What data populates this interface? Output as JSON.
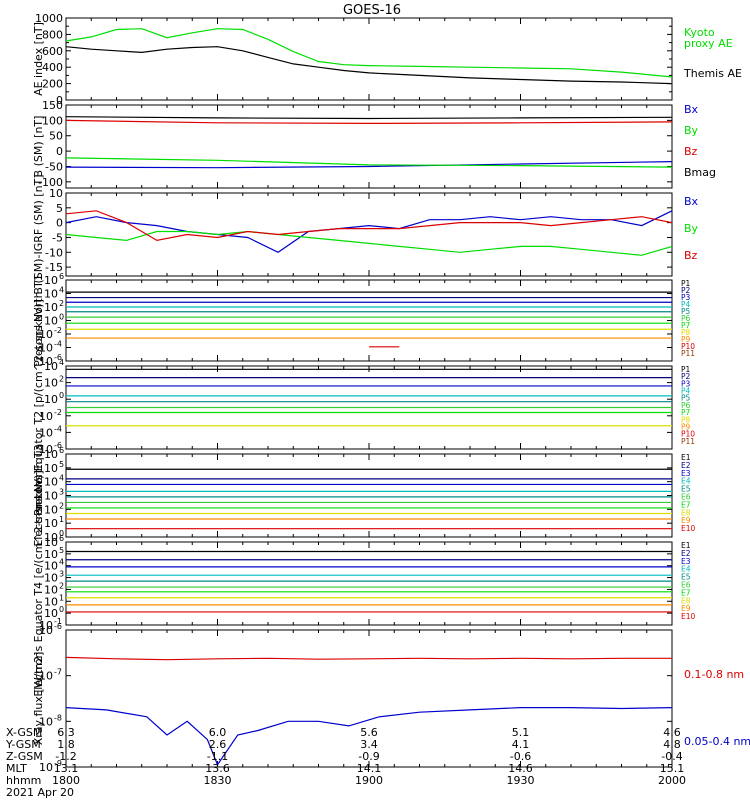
{
  "title": "GOES-16",
  "colors": {
    "black": "#000000",
    "green": "#00dd00",
    "blue": "#0000cc",
    "red": "#dd0000",
    "navy": "#000080",
    "cyan": "#00bbbb",
    "teal": "#008888",
    "lime": "#33cc33",
    "yellow": "#dddd00",
    "orange": "#ff8800",
    "brown": "#993300"
  },
  "chart_data": [
    {
      "type": "line",
      "ylabel": "AE index [nT]",
      "ylim": [
        0,
        1000
      ],
      "yticks": [
        "0",
        "200",
        "400",
        "600",
        "800",
        "1000"
      ],
      "yticks_minor": [
        "100",
        "300",
        "500",
        "700",
        "900"
      ],
      "series": [
        {
          "name": "Kyoto proxy AE",
          "color": "#00dd00",
          "x": [
            0,
            5,
            10,
            15,
            20,
            25,
            30,
            35,
            40,
            45,
            50,
            55,
            60,
            70,
            80,
            90,
            100,
            110,
            120
          ],
          "y": [
            720,
            770,
            860,
            870,
            760,
            820,
            870,
            860,
            740,
            590,
            470,
            430,
            420,
            410,
            400,
            390,
            380,
            340,
            280
          ]
        },
        {
          "name": "Themis AE",
          "color": "#000000",
          "x": [
            0,
            5,
            10,
            15,
            20,
            25,
            30,
            35,
            40,
            45,
            50,
            55,
            60,
            70,
            80,
            90,
            100,
            110,
            120
          ],
          "y": [
            650,
            620,
            600,
            580,
            620,
            640,
            650,
            600,
            520,
            440,
            400,
            360,
            330,
            300,
            270,
            250,
            230,
            220,
            200
          ]
        }
      ]
    },
    {
      "type": "line",
      "ylabel": "B (SM) [nT]",
      "ylim": [
        -120,
        150
      ],
      "yticks": [
        "-100",
        "-50",
        "0",
        "50",
        "100",
        "150"
      ],
      "series": [
        {
          "name": "Bx",
          "color": "#0000cc",
          "x": [
            0,
            30,
            60,
            90,
            120
          ],
          "y": [
            -52,
            -54,
            -50,
            -42,
            -34
          ]
        },
        {
          "name": "By",
          "color": "#00dd00",
          "x": [
            0,
            30,
            60,
            90,
            120
          ],
          "y": [
            -22,
            -30,
            -45,
            -47,
            -52
          ]
        },
        {
          "name": "Bz",
          "color": "#dd0000",
          "x": [
            0,
            30,
            60,
            90,
            120
          ],
          "y": [
            100,
            92,
            90,
            92,
            95
          ]
        },
        {
          "name": "Bmag",
          "color": "#000000",
          "x": [
            0,
            30,
            60,
            90,
            120
          ],
          "y": [
            112,
            108,
            106,
            108,
            110
          ]
        }
      ]
    },
    {
      "type": "line",
      "ylabel": "B (SM)-IGRF (SM) [nT]",
      "ylim": [
        -18,
        10
      ],
      "yticks": [
        "-15",
        "-10",
        "-5",
        "0",
        "5",
        "10"
      ],
      "series": [
        {
          "name": "Bx",
          "color": "#0000cc",
          "x": [
            0,
            6,
            12,
            18,
            24,
            30,
            36,
            42,
            48,
            54,
            60,
            66,
            72,
            78,
            84,
            90,
            96,
            102,
            108,
            114,
            120
          ],
          "y": [
            0,
            2,
            0,
            -1,
            -3,
            -4,
            -5,
            -10,
            -3,
            -2,
            -1,
            -2,
            1,
            1,
            2,
            1,
            2,
            1,
            1,
            -1,
            4
          ]
        },
        {
          "name": "By",
          "color": "#00dd00",
          "x": [
            0,
            6,
            12,
            18,
            24,
            30,
            36,
            42,
            48,
            54,
            60,
            66,
            72,
            78,
            84,
            90,
            96,
            102,
            108,
            114,
            120
          ],
          "y": [
            -4,
            -5,
            -6,
            -3,
            -3,
            -4,
            -3,
            -4,
            -5,
            -6,
            -7,
            -8,
            -9,
            -10,
            -9,
            -8,
            -8,
            -9,
            -10,
            -11,
            -8
          ]
        },
        {
          "name": "Bz",
          "color": "#dd0000",
          "x": [
            0,
            6,
            12,
            18,
            24,
            30,
            36,
            42,
            48,
            54,
            60,
            66,
            72,
            78,
            84,
            90,
            96,
            102,
            108,
            114,
            120
          ],
          "y": [
            3,
            4,
            0,
            -6,
            -4,
            -5,
            -3,
            -4,
            -3,
            -2,
            -2,
            -2,
            -1,
            0,
            0,
            0,
            -1,
            0,
            1,
            2,
            0
          ]
        }
      ]
    },
    {
      "type": "line",
      "ylabel": "Protons North T1",
      "yscale": "log",
      "ylim": [
        -6,
        6
      ],
      "yticks": [
        "10^-6",
        "10^-4",
        "10^-2",
        "10^0",
        "10^2",
        "10^4",
        "10^6"
      ],
      "series": [
        {
          "name": "P1",
          "color": "#000000",
          "y": 4.2
        },
        {
          "name": "P2",
          "color": "#000080",
          "y": 3.4
        },
        {
          "name": "P3",
          "color": "#0000cc",
          "y": 2.7
        },
        {
          "name": "P4",
          "color": "#00bbbb",
          "y": 2.0
        },
        {
          "name": "P5",
          "color": "#008888",
          "y": 1.3
        },
        {
          "name": "P6",
          "color": "#33cc33",
          "y": 0.5
        },
        {
          "name": "P7",
          "color": "#00dd00",
          "y": -0.4
        },
        {
          "name": "P8",
          "color": "#dddd00",
          "y": -1.3
        },
        {
          "name": "P9",
          "color": "#ff8800",
          "y": -2.6
        },
        {
          "name": "P10",
          "color": "#dd0000",
          "y": -3.9,
          "segment": [
            60,
            66
          ]
        },
        {
          "name": "P11",
          "color": "#993300",
          "y": null
        }
      ]
    },
    {
      "type": "line",
      "ylabel": "Protons Equator T2 [p/(cm^2-s-sr-keV)]",
      "yscale": "log",
      "ylim": [
        -6,
        4
      ],
      "yticks": [
        "10^-6",
        "10^-4",
        "10^-2",
        "10^0",
        "10^2",
        "10^4"
      ],
      "series": [
        {
          "name": "P1",
          "color": "#000000",
          "y": 3.6
        },
        {
          "name": "P2",
          "color": "#000080",
          "y": 2.6
        },
        {
          "name": "P3",
          "color": "#0000cc",
          "y": 1.6
        },
        {
          "name": "P4",
          "color": "#00bbbb",
          "y": 0.4
        },
        {
          "name": "P5",
          "color": "#008888",
          "y": -0.3
        },
        {
          "name": "P6",
          "color": "#33cc33",
          "y": -1.0
        },
        {
          "name": "P7",
          "color": "#00dd00",
          "y": -1.6
        },
        {
          "name": "P8",
          "color": "#dddd00",
          "y": -3.2
        },
        {
          "name": "P9",
          "color": "#ff8800",
          "y": null
        },
        {
          "name": "P10",
          "color": "#dd0000",
          "y": null
        },
        {
          "name": "P11",
          "color": "#993300",
          "y": null
        }
      ]
    },
    {
      "type": "line",
      "ylabel": "Electrons North T3",
      "yscale": "log",
      "ylim": [
        0,
        6
      ],
      "yticks": [
        "10^0",
        "10^1",
        "10^2",
        "10^3",
        "10^4",
        "10^5",
        "10^6"
      ],
      "series": [
        {
          "name": "E1",
          "color": "#000000",
          "y": 4.9
        },
        {
          "name": "E2",
          "color": "#000080",
          "y": 4.2
        },
        {
          "name": "E3",
          "color": "#0000cc",
          "y": 3.8
        },
        {
          "name": "E4",
          "color": "#00bbbb",
          "y": 3.3
        },
        {
          "name": "E5",
          "color": "#008888",
          "y": 2.9
        },
        {
          "name": "E6",
          "color": "#33cc33",
          "y": 2.5
        },
        {
          "name": "E7",
          "color": "#00dd00",
          "y": 2.1
        },
        {
          "name": "E8",
          "color": "#dddd00",
          "y": 1.7
        },
        {
          "name": "E9",
          "color": "#ff8800",
          "y": 1.3
        },
        {
          "name": "E10",
          "color": "#dd0000",
          "y": 0.6
        }
      ]
    },
    {
      "type": "line",
      "ylabel": "Electrons Equator T4 [e/(cm^2-s-sr-keV)]",
      "yscale": "log",
      "ylim": [
        -1,
        6
      ],
      "yticks": [
        "10^-1",
        "10^0",
        "10^1",
        "10^2",
        "10^3",
        "10^4",
        "10^5",
        "10^6"
      ],
      "series": [
        {
          "name": "E1",
          "color": "#000000",
          "y": 5.2
        },
        {
          "name": "E2",
          "color": "#000080",
          "y": 4.5
        },
        {
          "name": "E3",
          "color": "#0000cc",
          "y": 3.9
        },
        {
          "name": "E4",
          "color": "#00bbbb",
          "y": 3.2
        },
        {
          "name": "E5",
          "color": "#008888",
          "y": 2.7
        },
        {
          "name": "E6",
          "color": "#33cc33",
          "y": 2.2
        },
        {
          "name": "E7",
          "color": "#00dd00",
          "y": 1.8
        },
        {
          "name": "E8",
          "color": "#dddd00",
          "y": 1.3
        },
        {
          "name": "E9",
          "color": "#ff8800",
          "y": 0.7
        },
        {
          "name": "E10",
          "color": "#dd0000",
          "y": 0.1
        }
      ]
    },
    {
      "type": "line",
      "ylabel": "Xray flux [W/m2]",
      "yscale": "log",
      "ylim": [
        -9,
        -6
      ],
      "yticks": [
        "10^-9",
        "10^-8",
        "10^-7",
        "10^-6"
      ],
      "series": [
        {
          "name": "0.1-0.8 nm",
          "color": "#dd0000",
          "x": [
            0,
            10,
            20,
            30,
            40,
            50,
            60,
            70,
            80,
            90,
            100,
            110,
            120
          ],
          "y": [
            -6.6,
            -6.63,
            -6.65,
            -6.63,
            -6.62,
            -6.64,
            -6.63,
            -6.62,
            -6.63,
            -6.62,
            -6.63,
            -6.62,
            -6.62
          ]
        },
        {
          "name": "0.05-0.4 nm",
          "color": "#0000cc",
          "x": [
            0,
            8,
            16,
            20,
            24,
            28,
            30,
            34,
            38,
            44,
            50,
            56,
            62,
            70,
            80,
            90,
            100,
            110,
            120
          ],
          "y": [
            -7.7,
            -7.75,
            -7.9,
            -8.3,
            -8.0,
            -8.4,
            -8.95,
            -8.3,
            -8.2,
            -8.0,
            -8.0,
            -8.1,
            -7.9,
            -7.8,
            -7.75,
            -7.7,
            -7.7,
            -7.72,
            -7.7
          ]
        }
      ]
    }
  ],
  "xaxis": {
    "rows": [
      {
        "label": "X-GSM",
        "values": [
          "6.3",
          "6.0",
          "5.6",
          "5.1",
          "4.6"
        ]
      },
      {
        "label": "Y-GSM",
        "values": [
          "1.8",
          "2.6",
          "3.4",
          "4.1",
          "4.8"
        ]
      },
      {
        "label": "Z-GSM",
        "values": [
          "-1.2",
          "-1.1",
          "-0.9",
          "-0.6",
          "-0.4"
        ]
      },
      {
        "label": "MLT",
        "values": [
          "13.1",
          "13.6",
          "14.1",
          "14.6",
          "15.1"
        ]
      },
      {
        "label": "hhmm",
        "values": [
          "1800",
          "1830",
          "1900",
          "1930",
          "2000"
        ]
      }
    ],
    "date": "2021 Apr 20"
  }
}
